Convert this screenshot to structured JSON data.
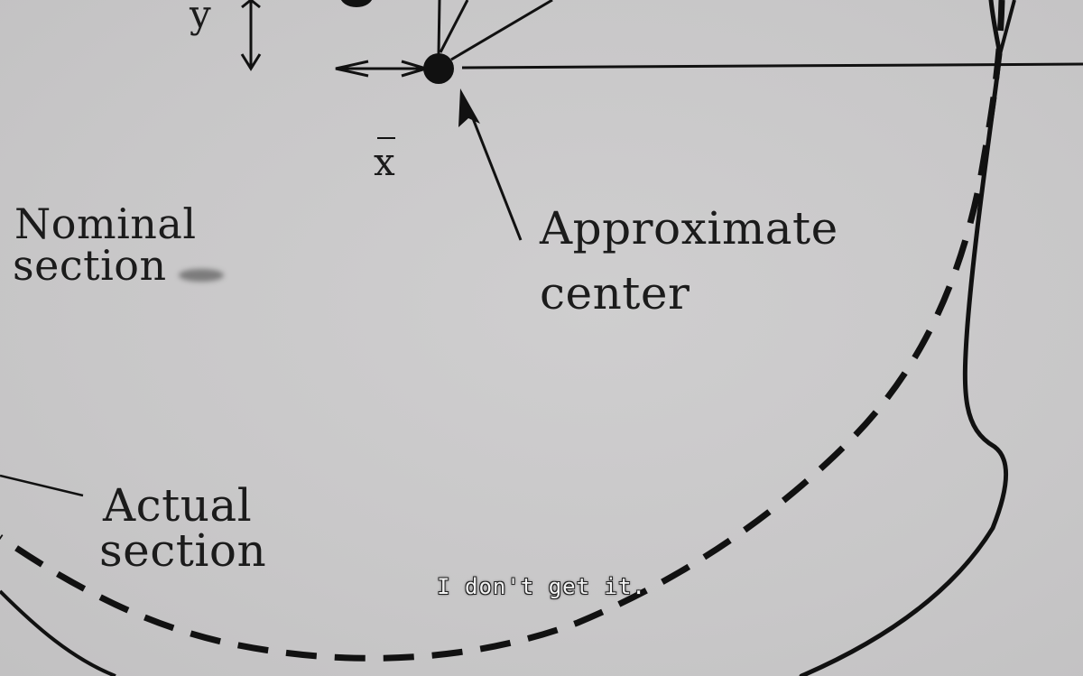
{
  "diagram": {
    "labels": {
      "y": "y",
      "x_bar": "x",
      "nominal_line1": "Nominal",
      "nominal_line2": "section",
      "approx_line1": "Approximate",
      "approx_line2": "center",
      "actual_line1": "Actual",
      "actual_line2": "section"
    },
    "colors": {
      "ink": "#111111",
      "paper": "#c9c8c9",
      "subtitle": "#f4f4f4"
    }
  },
  "subtitle": {
    "text": "I don't get it."
  }
}
